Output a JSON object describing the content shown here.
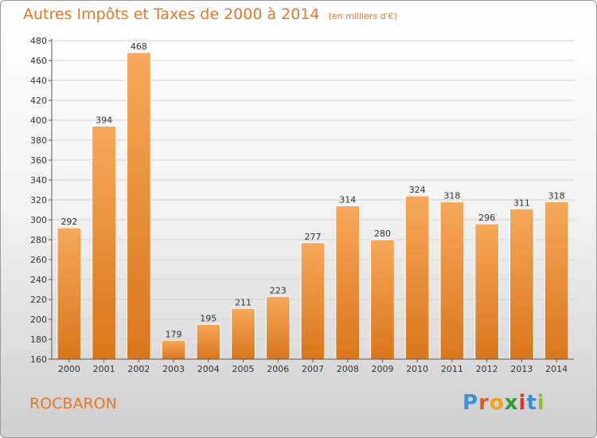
{
  "header": {
    "title": "Autres Impôts et Taxes de 2000 à 2014",
    "subtitle": "(en milliers d'€)"
  },
  "footer": {
    "town": "ROCBARON",
    "brand": [
      "P",
      "r",
      "o",
      "x",
      "i",
      "t",
      "i"
    ],
    "brand_colors": [
      "#3a8fd6",
      "#e05a2a",
      "#f2a21a",
      "#2f9a3a",
      "#e0352a",
      "#3a8fd6",
      "#8cbf2a"
    ]
  },
  "colors": {
    "accent": "#e07a2a",
    "bar_top": "#f6a85a",
    "bar_bottom": "#d9761c"
  },
  "chart_data": {
    "type": "bar",
    "categories": [
      "2000",
      "2001",
      "2002",
      "2003",
      "2004",
      "2005",
      "2006",
      "2007",
      "2008",
      "2009",
      "2010",
      "2011",
      "2012",
      "2013",
      "2014"
    ],
    "values": [
      292,
      394,
      468,
      179,
      195,
      211,
      223,
      277,
      314,
      280,
      324,
      318,
      296,
      311,
      318
    ],
    "title": "Autres Impôts et Taxes de 2000 à 2014",
    "subtitle": "(en milliers d'€)",
    "ylim": [
      160,
      480
    ],
    "yticks": [
      160,
      180,
      200,
      220,
      240,
      260,
      280,
      300,
      320,
      340,
      360,
      380,
      400,
      420,
      440,
      460,
      480
    ],
    "grid": true
  }
}
